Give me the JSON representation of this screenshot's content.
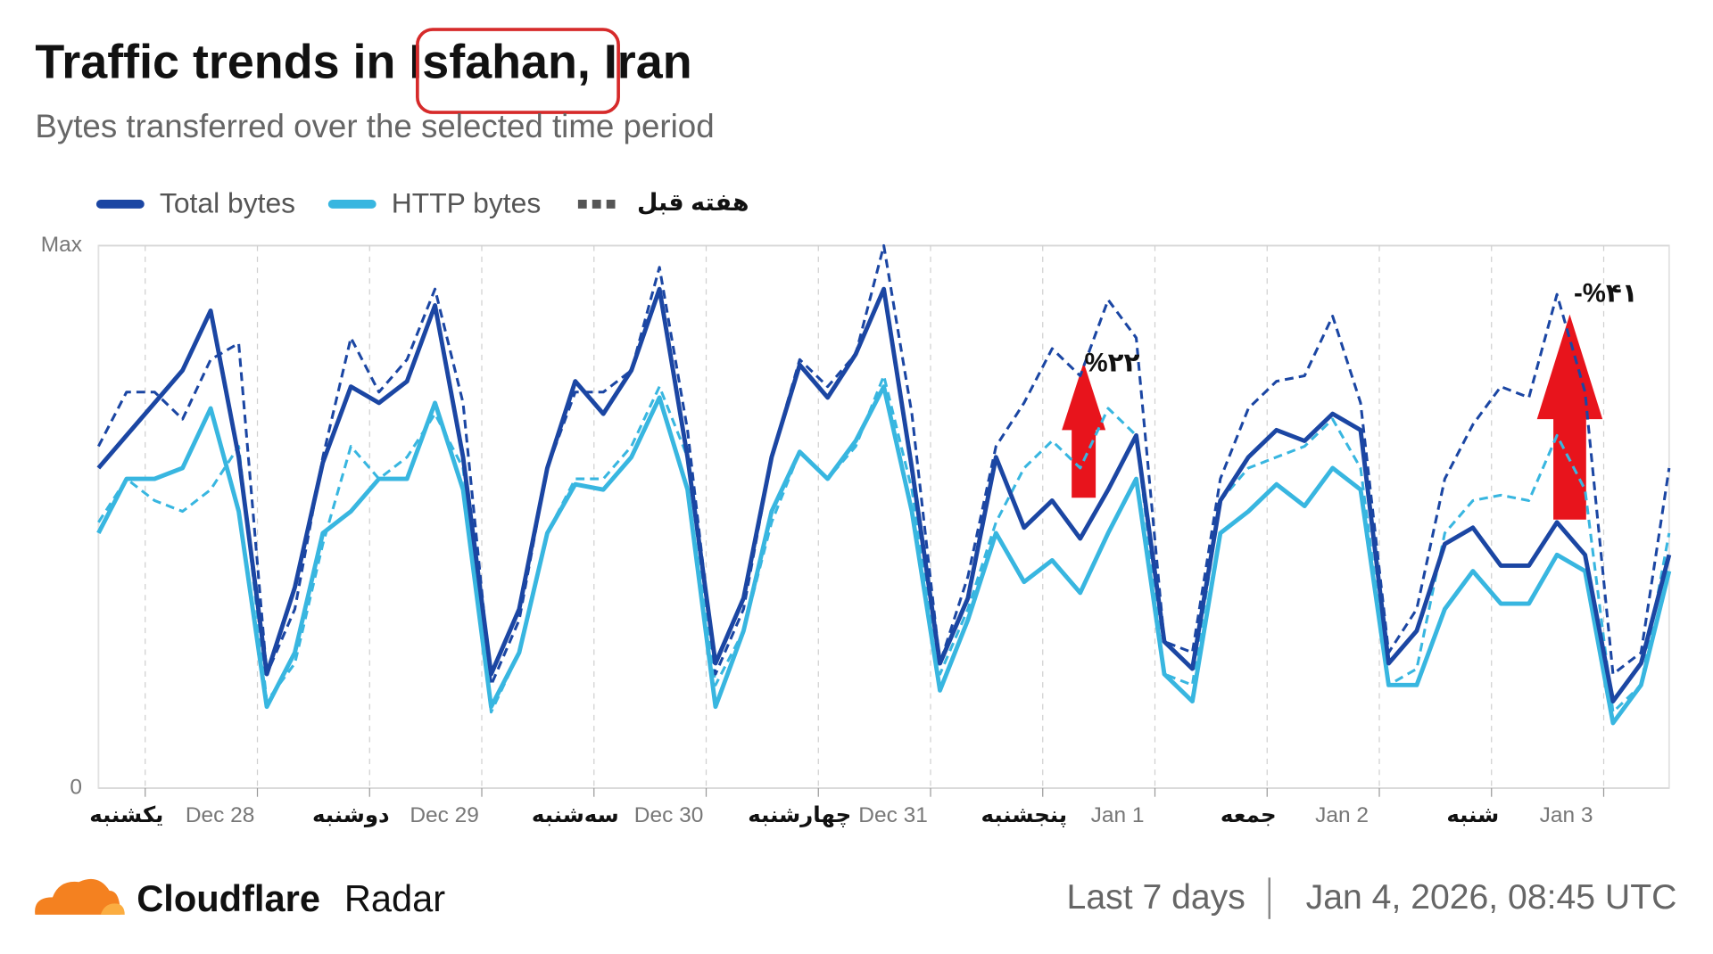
{
  "chart_data": {
    "type": "line",
    "title": "Traffic trends in Isfahan, Iran",
    "subtitle": "Bytes transferred over the selected time period",
    "x": [
      0,
      3,
      6,
      9,
      12,
      15,
      18,
      21,
      24,
      27,
      30,
      33,
      36,
      39,
      42,
      45,
      48,
      51,
      54,
      57,
      60,
      63,
      66,
      69,
      72,
      75,
      78,
      81,
      84,
      87,
      90,
      93,
      96,
      99,
      102,
      105,
      108,
      111,
      114,
      117,
      120,
      123,
      126,
      129,
      132,
      135,
      138,
      141,
      144,
      147,
      150,
      153,
      156,
      159,
      162,
      165,
      168
    ],
    "xlim": [
      0,
      168
    ],
    "xticks": [
      {
        "value": 3,
        "label": "یکشنبه"
      },
      {
        "value": 13,
        "label": "Dec 28"
      },
      {
        "value": 27,
        "label": "دوشنبه"
      },
      {
        "value": 37,
        "label": "Dec 29"
      },
      {
        "value": 51,
        "label": "سه‌شنبه"
      },
      {
        "value": 61,
        "label": "Dec 30"
      },
      {
        "value": 75,
        "label": "چهارشنبه"
      },
      {
        "value": 85,
        "label": "Dec 31"
      },
      {
        "value": 99,
        "label": "پنجشنبه"
      },
      {
        "value": 109,
        "label": "Jan 1"
      },
      {
        "value": 123,
        "label": "جمعه"
      },
      {
        "value": 133,
        "label": "Jan 2"
      },
      {
        "value": 147,
        "label": "شنبه"
      },
      {
        "value": 157,
        "label": "Jan 3"
      }
    ],
    "xgrid": [
      5,
      17,
      29,
      41,
      53,
      65,
      77,
      89,
      101,
      113,
      125,
      137,
      149,
      161
    ],
    "ylim": [
      0,
      100
    ],
    "yticks": [
      0,
      {
        "value": 100,
        "label": "Max"
      }
    ],
    "series": [
      {
        "name": "Total bytes",
        "color": "#1b46a3",
        "dashed": false,
        "values": [
          59,
          65,
          71,
          77,
          88,
          61,
          21,
          37,
          60,
          74,
          71,
          75,
          89,
          61,
          21,
          33,
          59,
          75,
          69,
          77,
          92,
          61,
          23,
          35,
          61,
          78,
          72,
          80,
          92,
          59,
          23,
          35,
          61,
          48,
          53,
          46,
          55,
          65,
          27,
          22,
          53,
          61,
          66,
          64,
          69,
          66,
          23,
          29,
          45,
          48,
          41,
          41,
          49,
          43,
          16,
          23,
          43
        ]
      },
      {
        "name": "HTTP bytes",
        "color": "#38b6e0",
        "dashed": false,
        "values": [
          47,
          57,
          57,
          59,
          70,
          51,
          15,
          25,
          47,
          51,
          57,
          57,
          71,
          55,
          15,
          25,
          47,
          56,
          55,
          61,
          72,
          55,
          15,
          29,
          51,
          62,
          57,
          64,
          74,
          51,
          18,
          31,
          47,
          38,
          42,
          36,
          47,
          57,
          21,
          16,
          47,
          51,
          56,
          52,
          59,
          55,
          19,
          19,
          33,
          40,
          34,
          34,
          43,
          40,
          12,
          19,
          40
        ]
      },
      {
        "color": "#1b46a3",
        "dashed": true,
        "values": [
          63,
          73,
          73,
          68,
          79,
          82,
          21,
          33,
          61,
          83,
          73,
          79,
          92,
          71,
          19,
          31,
          59,
          73,
          73,
          77,
          96,
          66,
          21,
          33,
          61,
          79,
          74,
          80,
          100,
          69,
          23,
          39,
          63,
          71,
          81,
          76,
          90,
          83,
          27,
          25,
          57,
          70,
          75,
          76,
          87,
          71,
          25,
          33,
          57,
          67,
          74,
          72,
          91,
          73,
          21,
          25,
          59
        ]
      },
      {
        "color": "#38b6e0",
        "dashed": true,
        "values": [
          49,
          57,
          53,
          51,
          55,
          63,
          16,
          23,
          45,
          63,
          57,
          61,
          69,
          59,
          14,
          25,
          47,
          57,
          57,
          63,
          74,
          61,
          19,
          29,
          49,
          62,
          57,
          63,
          76,
          55,
          21,
          33,
          49,
          59,
          64,
          59,
          70,
          65,
          21,
          19,
          53,
          59,
          61,
          63,
          68,
          59,
          19,
          22,
          47,
          53,
          54,
          53,
          65,
          55,
          14,
          19,
          47
        ]
      }
    ],
    "legend_extra": {
      "name": "هفته قبل",
      "color": "#555555",
      "dashed": true
    },
    "annotations": [
      "%۲۲",
      "-%۴۱"
    ],
    "grid": true
  },
  "footer": {
    "brand": "Cloudflare",
    "product": "Radar",
    "period": "Last 7 days",
    "timestamp": "Jan 4, 2026, 08:45 UTC"
  }
}
